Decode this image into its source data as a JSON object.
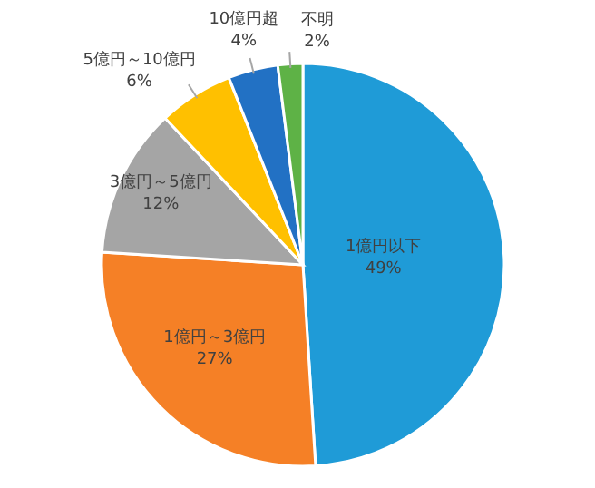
{
  "chart_data": {
    "type": "pie",
    "categories": [
      "1億円以下",
      "1億円～3億円",
      "3億円～5億円",
      "5億円～10億円",
      "10億円超",
      "不明"
    ],
    "values": [
      49,
      27,
      12,
      6,
      4,
      2
    ],
    "colors": [
      "#1f9bd7",
      "#f58026",
      "#a5a5a5",
      "#ffc000",
      "#2271c4",
      "#5eb246"
    ],
    "value_labels": [
      "49%",
      "27%",
      "12%",
      "6%",
      "4%",
      "2%"
    ]
  }
}
